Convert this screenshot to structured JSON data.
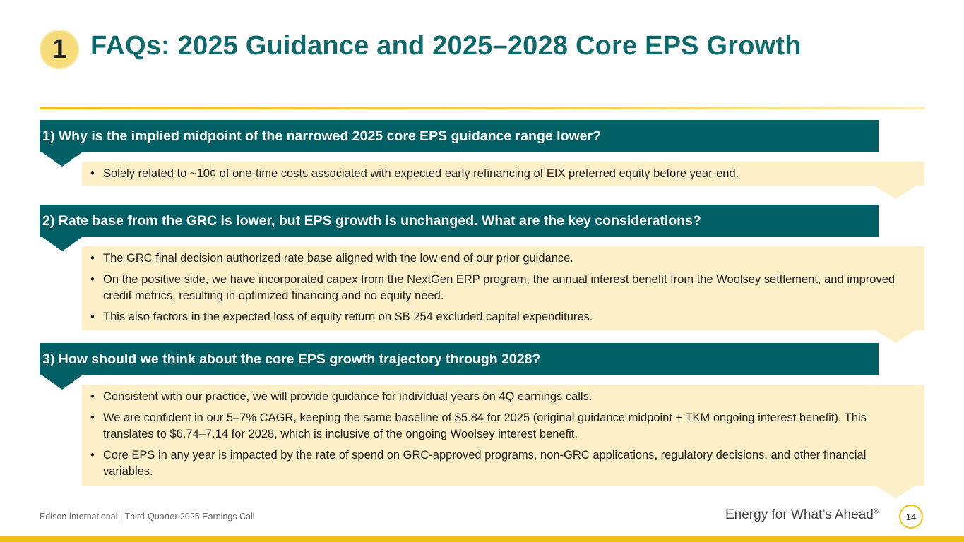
{
  "header": {
    "badge_number": "1",
    "title": "FAQs: 2025 Guidance and 2025–2028 Core EPS Growth"
  },
  "faqs": [
    {
      "question": "1) Why is the implied midpoint of the narrowed 2025 core EPS guidance range lower?",
      "answers": [
        "Solely related to ~10¢ of one-time costs associated with expected early refinancing of EIX preferred equity before year-end."
      ]
    },
    {
      "question": "2) Rate base from the GRC is lower, but EPS growth is unchanged. What are the key considerations?",
      "answers": [
        "The GRC final decision authorized rate base aligned with the low end of our prior guidance.",
        "On the positive side, we have incorporated capex from the NextGen ERP program, the annual interest benefit from the Woolsey settlement, and improved credit metrics, resulting in optimized financing and no equity need.",
        "This also factors in the expected loss of equity return on SB 254 excluded capital expenditures."
      ]
    },
    {
      "question": "3) How should we think about the core EPS growth trajectory through 2028?",
      "answers": [
        "Consistent with our practice, we will provide guidance for individual years on 4Q earnings calls.",
        "We are confident in our 5–7% CAGR, keeping the same baseline of $5.84 for 2025 (original guidance midpoint + TKM ongoing interest benefit). This translates to $6.74–7.14 for 2028, which is inclusive of the ongoing Woolsey interest benefit.",
        "Core EPS in any year is impacted by the rate of spend on GRC-approved programs, non-GRC applications, regulatory decisions, and other financial variables."
      ]
    }
  ],
  "footer": {
    "company_event": "Edison International |  Third-Quarter 2025 Earnings Call",
    "tagline": "Energy for What’s Ahead",
    "tagline_mark": "®",
    "page_number": "14"
  },
  "colors": {
    "teal_bar": "#006066",
    "title_teal": "#0f6a6c",
    "answer_bg": "#fdf0c8",
    "gold": "#f2c012"
  }
}
